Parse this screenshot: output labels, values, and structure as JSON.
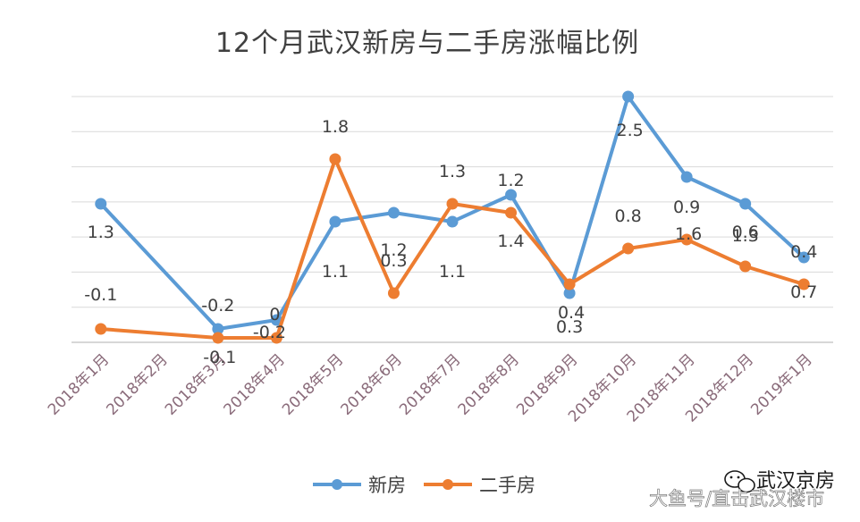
{
  "chart_data": {
    "type": "line",
    "title": "12个月武汉新房与二手房涨幅比例",
    "categories": [
      "2018年1月",
      "2018年2月",
      "2018年3月",
      "2018年4月",
      "2018年5月",
      "2018年6月",
      "2018年7月",
      "2018年8月",
      "2018年9月",
      "2018年10月",
      "2018年11月",
      "2018年12月",
      "2019年1月"
    ],
    "grid": true,
    "legend_position": "bottom",
    "series": [
      {
        "name": "新房",
        "color": "#5b9bd5",
        "values": [
          1.3,
          null,
          -0.1,
          0,
          1.1,
          1.2,
          1.1,
          1.4,
          0.3,
          2.5,
          1.6,
          1.3,
          0.7
        ],
        "labels": [
          "1.3",
          "",
          "-0.1",
          "0",
          "1.1",
          "1.2",
          "1.1",
          "1.4",
          "0.3",
          "2.5",
          "1.6",
          "1.3",
          "0.7"
        ]
      },
      {
        "name": "二手房",
        "color": "#ed7d31",
        "values": [
          -0.1,
          null,
          -0.2,
          -0.2,
          1.8,
          0.3,
          1.3,
          1.2,
          0.4,
          0.8,
          0.9,
          0.6,
          0.4
        ],
        "labels": [
          "-0.1",
          "",
          "-0.2",
          "-0.2",
          "1.8",
          "0.3",
          "1.3",
          "1.2",
          "0.4",
          "0.8",
          "0.9",
          "0.6",
          "0.4"
        ]
      }
    ]
  },
  "watermark": {
    "brand": "武汉京房",
    "source": "大鱼号/直击武汉楼市"
  }
}
